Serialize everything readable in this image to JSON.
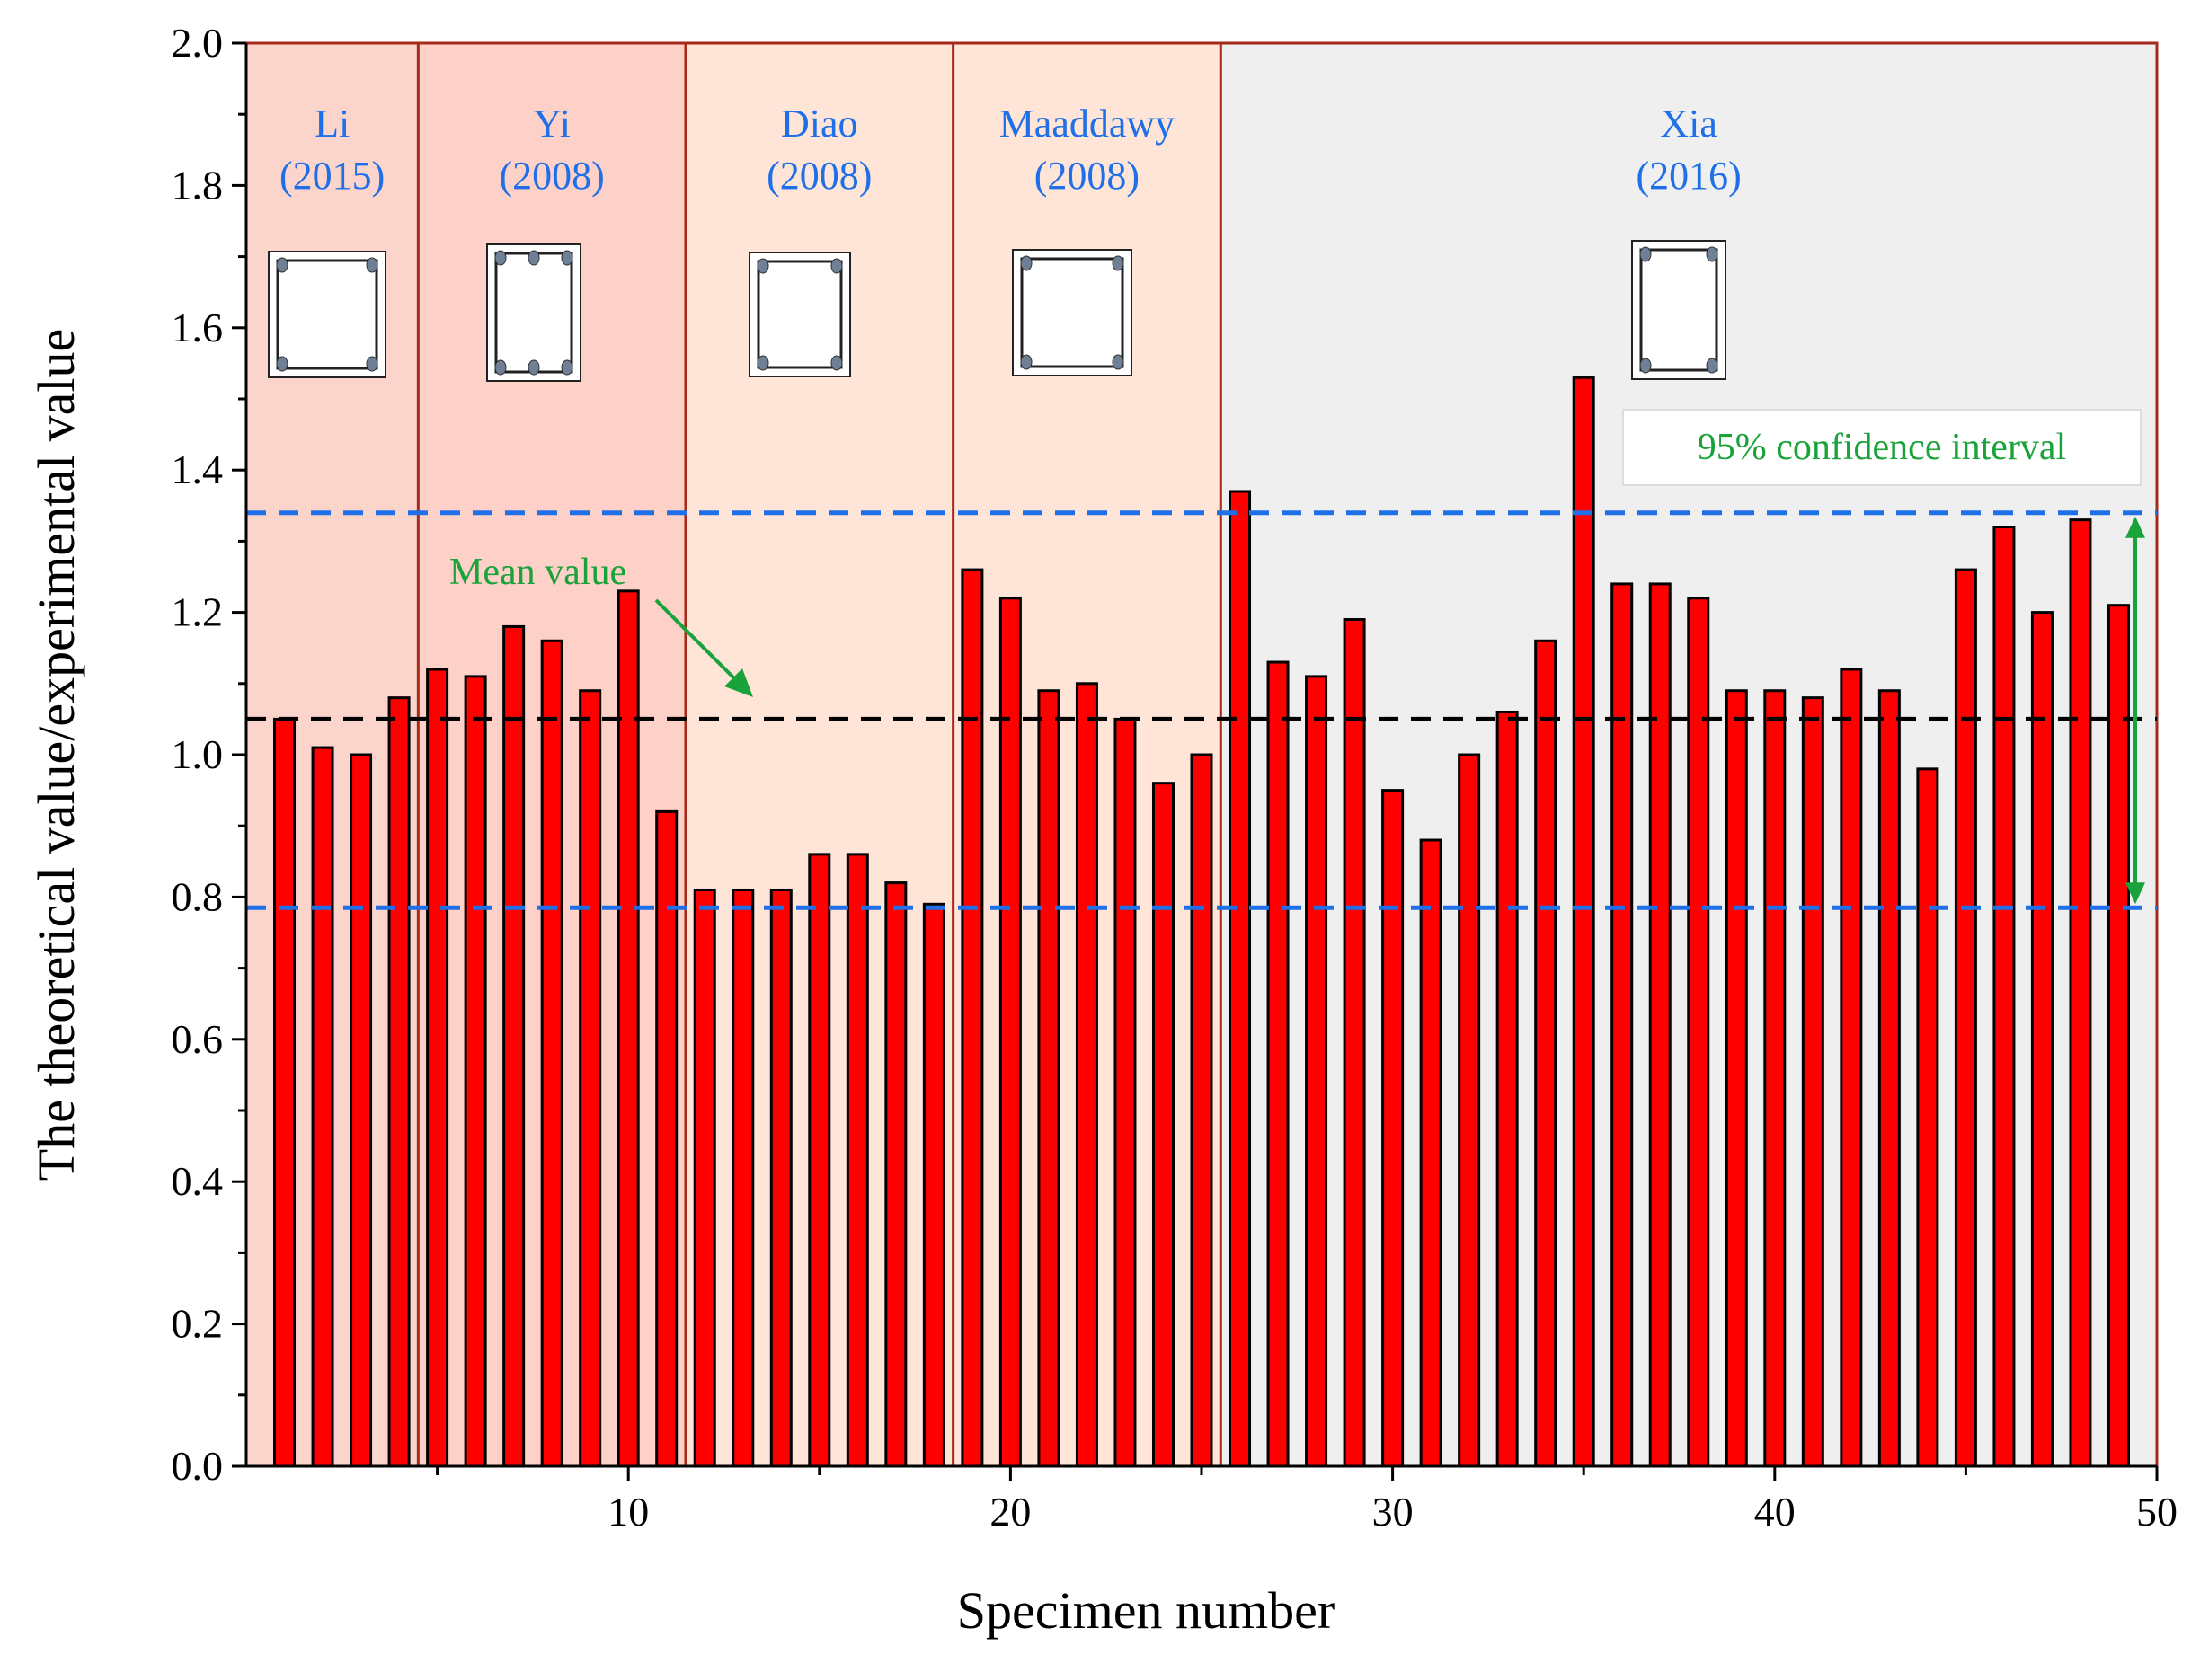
{
  "chart_data": {
    "type": "bar",
    "title": "",
    "xlabel": "Specimen number",
    "ylabel": "The theoretical value/experimental value",
    "xlim": [
      0,
      50
    ],
    "ylim": [
      0.0,
      2.0
    ],
    "x_ticks": [
      10,
      20,
      30,
      40,
      50
    ],
    "x_minor_ticks": [
      5,
      15,
      25,
      35,
      45
    ],
    "y_ticks": [
      "0.0",
      "0.2",
      "0.4",
      "0.6",
      "0.8",
      "1.0",
      "1.2",
      "1.4",
      "1.6",
      "1.8",
      "2.0"
    ],
    "x": [
      1,
      2,
      3,
      4,
      5,
      6,
      7,
      8,
      9,
      10,
      11,
      12,
      13,
      14,
      15,
      16,
      17,
      18,
      19,
      20,
      21,
      22,
      23,
      24,
      25,
      26,
      27,
      28,
      29,
      30,
      31,
      32,
      33,
      34,
      35,
      36,
      37,
      38,
      39,
      40,
      41,
      42,
      43,
      44,
      45,
      46,
      47,
      48,
      49
    ],
    "values": [
      1.05,
      1.01,
      1.0,
      1.08,
      1.12,
      1.11,
      1.18,
      1.16,
      1.09,
      1.23,
      0.92,
      0.81,
      0.81,
      0.81,
      0.86,
      0.86,
      0.82,
      0.79,
      1.26,
      1.22,
      1.09,
      1.1,
      1.05,
      0.96,
      1.0,
      1.37,
      1.13,
      1.11,
      1.19,
      0.95,
      0.88,
      1.0,
      1.06,
      1.16,
      1.53,
      1.24,
      1.24,
      1.22,
      1.09,
      1.09,
      1.08,
      1.12,
      1.09,
      0.98,
      1.26,
      1.32,
      1.2,
      1.33,
      1.21
    ],
    "bar_color": "#ff0000",
    "mean_value": 1.05,
    "confidence_lower": 0.785,
    "confidence_upper": 1.34,
    "groups": [
      {
        "name": "Li",
        "year": "(2015)",
        "x_start": 0,
        "x_end": 4.5,
        "color": "#fbd4cc",
        "section": "rect-4bars"
      },
      {
        "name": "Yi",
        "year": "(2008)",
        "x_start": 4.5,
        "x_end": 11.5,
        "color": "#fdd0c8",
        "section": "rect-6bars"
      },
      {
        "name": "Diao",
        "year": "(2008)",
        "x_start": 11.5,
        "x_end": 18.5,
        "color": "#fee5d7",
        "section": "rect-4bars"
      },
      {
        "name": "Maaddawy",
        "year": "(2008)",
        "x_start": 18.5,
        "x_end": 25.5,
        "color": "#fee5d7",
        "section": "square-4bars"
      },
      {
        "name": "Xia",
        "year": "(2016)",
        "x_start": 25.5,
        "x_end": 50,
        "color": "#efefef",
        "section": "tall-4bars"
      }
    ],
    "annotations": {
      "mean_label": "Mean value",
      "ci_label": "95% confidence interval"
    },
    "colors": {
      "region_border": "#a52a1a",
      "label_blue": "#1f6fe8",
      "annot_green": "#1aa33a",
      "mean_line": "#000000",
      "ci_line": "#1f6fe8"
    }
  }
}
